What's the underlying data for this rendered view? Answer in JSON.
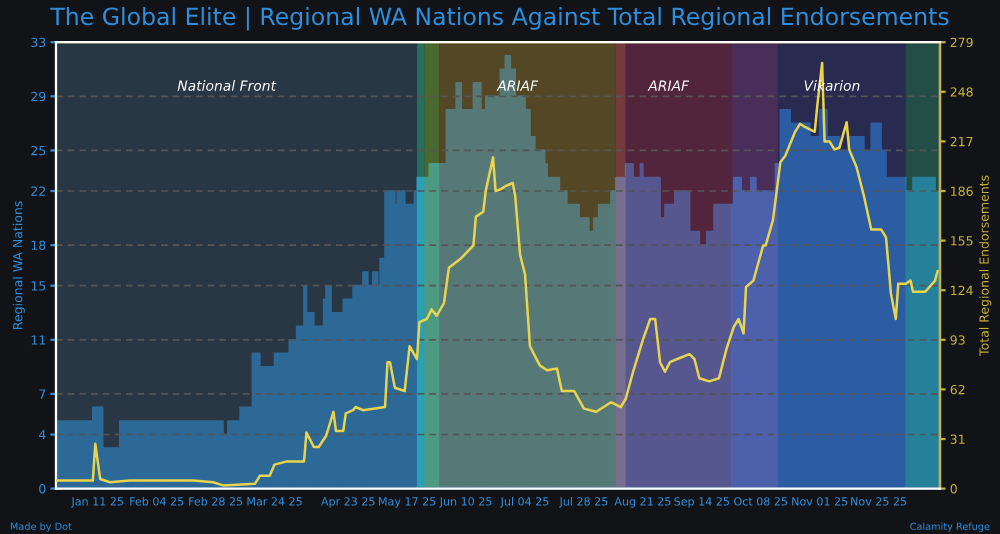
{
  "chart_data": {
    "type": "line",
    "title": "The Global Elite | Regional WA Nations Against Total Regional Endorsements",
    "ylabel": "Regional WA Nations",
    "y2label": "Total Regional Endorsements",
    "annotations": [
      "Made by Dot",
      "Calamity Refuge"
    ],
    "xlim": [
      "2024-12-25",
      "2025-12-20"
    ],
    "xticks": [
      {
        "value": "2025-01-11",
        "label": "Jan 11 25"
      },
      {
        "value": "2025-02-04",
        "label": "Feb 04 25"
      },
      {
        "value": "2025-02-28",
        "label": "Feb 28 25"
      },
      {
        "value": "2025-03-24",
        "label": "Mar 24 25"
      },
      {
        "value": "2025-04-23",
        "label": "Apr 23 25"
      },
      {
        "value": "2025-05-17",
        "label": "May 17 25"
      },
      {
        "value": "2025-06-10",
        "label": "Jun 10 25"
      },
      {
        "value": "2025-07-04",
        "label": "Jul 04 25"
      },
      {
        "value": "2025-07-28",
        "label": "Jul 28 25"
      },
      {
        "value": "2025-08-21",
        "label": "Aug 21 25"
      },
      {
        "value": "2025-09-14",
        "label": "Sep 14 25"
      },
      {
        "value": "2025-10-08",
        "label": "Oct 08 25"
      },
      {
        "value": "2025-11-01",
        "label": "Nov 01 25"
      },
      {
        "value": "2025-11-25",
        "label": "Nov 25 25"
      }
    ],
    "ylim": [
      0,
      33
    ],
    "yticks": [
      0,
      4,
      7,
      11,
      15,
      18,
      22,
      25,
      29,
      33
    ],
    "y2lim": [
      0,
      279
    ],
    "y2ticks": [
      0,
      31,
      62,
      93,
      124,
      155,
      186,
      217,
      248,
      279
    ],
    "grid": "y",
    "series": [
      {
        "type": "area",
        "color": "#2299ee",
        "x": [
          "2024-12-25",
          "2025-01-09",
          "2025-01-09",
          "2025-01-13",
          "2025-01-13",
          "2025-01-20",
          "2025-01-20",
          "2025-03-03",
          "2025-03-03",
          "2025-03-05",
          "2025-03-05",
          "2025-03-10",
          "2025-03-10",
          "2025-03-15",
          "2025-03-15",
          "2025-03-18",
          "2025-03-18",
          "2025-03-24",
          "2025-03-24",
          "2025-03-30",
          "2025-03-30",
          "2025-04-02",
          "2025-04-02",
          "2025-04-05",
          "2025-04-05",
          "2025-04-06",
          "2025-04-06",
          "2025-04-09",
          "2025-04-09",
          "2025-04-13",
          "2025-04-13",
          "2025-04-14",
          "2025-04-14",
          "2025-04-16",
          "2025-04-16",
          "2025-04-21",
          "2025-04-21",
          "2025-04-25",
          "2025-04-25",
          "2025-04-29",
          "2025-04-29",
          "2025-05-01",
          "2025-05-01",
          "2025-05-03",
          "2025-05-03",
          "2025-05-05",
          "2025-05-05",
          "2025-05-06",
          "2025-05-06",
          "2025-05-08",
          "2025-05-08",
          "2025-05-12",
          "2025-05-12",
          "2025-05-13",
          "2025-05-13",
          "2025-05-16",
          "2025-05-16",
          "2025-05-20",
          "2025-05-20",
          "2025-05-21",
          "2025-05-21",
          "2025-05-26",
          "2025-05-26",
          "2025-06-02",
          "2025-06-02",
          "2025-06-06",
          "2025-06-06",
          "2025-06-08",
          "2025-06-08",
          "2025-06-13",
          "2025-06-13",
          "2025-06-16",
          "2025-06-16",
          "2025-06-18",
          "2025-06-18",
          "2025-06-24",
          "2025-06-24",
          "2025-06-26",
          "2025-06-26",
          "2025-06-28",
          "2025-06-28",
          "2025-06-30",
          "2025-06-30",
          "2025-07-04",
          "2025-07-04",
          "2025-07-06",
          "2025-07-06",
          "2025-07-08",
          "2025-07-08",
          "2025-07-12",
          "2025-07-12",
          "2025-07-13",
          "2025-07-13",
          "2025-07-18",
          "2025-07-18",
          "2025-07-21",
          "2025-07-21",
          "2025-07-26",
          "2025-07-26",
          "2025-07-30",
          "2025-07-30",
          "2025-08-01",
          "2025-08-01",
          "2025-08-03",
          "2025-08-03",
          "2025-08-08",
          "2025-08-08",
          "2025-08-10",
          "2025-08-10",
          "2025-08-14",
          "2025-08-14",
          "2025-08-17",
          "2025-08-17",
          "2025-08-20",
          "2025-08-20",
          "2025-08-21",
          "2025-08-21",
          "2025-08-28",
          "2025-08-28",
          "2025-08-30",
          "2025-08-30",
          "2025-09-03",
          "2025-09-03",
          "2025-09-09",
          "2025-09-09",
          "2025-09-13",
          "2025-09-13",
          "2025-09-16",
          "2025-09-16",
          "2025-09-19",
          "2025-09-19",
          "2025-09-27",
          "2025-09-27",
          "2025-09-30",
          "2025-09-30",
          "2025-10-04",
          "2025-10-04",
          "2025-10-06",
          "2025-10-06",
          "2025-10-14",
          "2025-10-14",
          "2025-10-16",
          "2025-10-16",
          "2025-10-20",
          "2025-10-20",
          "2025-10-28",
          "2025-10-28",
          "2025-11-01",
          "2025-11-01",
          "2025-11-04",
          "2025-11-04",
          "2025-11-09",
          "2025-11-09",
          "2025-11-13",
          "2025-11-13",
          "2025-11-19",
          "2025-11-19",
          "2025-11-22",
          "2025-11-22",
          "2025-11-26",
          "2025-11-26",
          "2025-11-28",
          "2025-11-28",
          "2025-12-06",
          "2025-12-06",
          "2025-12-09",
          "2025-12-09",
          "2025-12-18",
          "2025-12-18",
          "2025-12-20"
        ],
        "values": [
          5,
          5,
          6,
          6,
          3,
          3,
          5,
          5,
          4,
          4,
          5,
          5,
          6,
          6,
          10,
          10,
          9,
          9,
          10,
          10,
          11,
          11,
          12,
          12,
          15,
          15,
          13,
          13,
          12,
          12,
          14,
          14,
          15,
          15,
          13,
          13,
          14,
          14,
          15,
          15,
          16,
          16,
          15,
          15,
          16,
          16,
          15,
          15,
          17,
          17,
          22,
          22,
          21,
          21,
          22,
          22,
          21,
          21,
          22,
          22,
          23,
          23,
          24,
          24,
          28,
          28,
          30,
          30,
          28,
          28,
          30,
          30,
          28,
          28,
          29,
          29,
          31,
          31,
          32,
          32,
          31,
          31,
          29,
          29,
          28,
          28,
          26,
          26,
          25,
          25,
          24,
          24,
          23,
          23,
          22,
          22,
          21,
          21,
          20,
          20,
          19,
          19,
          20,
          20,
          21,
          21,
          22,
          22,
          23,
          23,
          24,
          24,
          23,
          23,
          24,
          24,
          23,
          23,
          20,
          20,
          21,
          21,
          22,
          22,
          19,
          19,
          18,
          18,
          19,
          19,
          21,
          21,
          23,
          23,
          22,
          22,
          23,
          23,
          22,
          22,
          24,
          24,
          28,
          28,
          27,
          27,
          26,
          26,
          28,
          28,
          26,
          26,
          25,
          25,
          26,
          26,
          25,
          25,
          27,
          27,
          25,
          25,
          23,
          23,
          22,
          22,
          23,
          23,
          22,
          22
        ]
      },
      {
        "axis": "y2",
        "color": "#e8d44d",
        "x": [
          "2024-12-25",
          "2025-01-09",
          "2025-01-10",
          "2025-01-12",
          "2025-01-16",
          "2025-01-24",
          "2025-02-19",
          "2025-02-27",
          "2025-03-03",
          "2025-03-16",
          "2025-03-18",
          "2025-03-22",
          "2025-03-24",
          "2025-03-29",
          "2025-04-05",
          "2025-04-06",
          "2025-04-09",
          "2025-04-11",
          "2025-04-14",
          "2025-04-17",
          "2025-04-18",
          "2025-04-21",
          "2025-04-22",
          "2025-04-25",
          "2025-04-26",
          "2025-04-29",
          "2025-05-08",
          "2025-05-09",
          "2025-05-10",
          "2025-05-12",
          "2025-05-16",
          "2025-05-18",
          "2025-05-21",
          "2025-05-22",
          "2025-05-25",
          "2025-05-27",
          "2025-05-29",
          "2025-06-01",
          "2025-06-03",
          "2025-06-08",
          "2025-06-13",
          "2025-06-14",
          "2025-06-17",
          "2025-06-18",
          "2025-06-21",
          "2025-06-22",
          "2025-06-24",
          "2025-06-26",
          "2025-06-29",
          "2025-06-30",
          "2025-07-02",
          "2025-07-04",
          "2025-07-06",
          "2025-07-10",
          "2025-07-13",
          "2025-07-17",
          "2025-07-19",
          "2025-07-24",
          "2025-07-28",
          "2025-08-02",
          "2025-08-08",
          "2025-08-12",
          "2025-08-14",
          "2025-08-17",
          "2025-08-21",
          "2025-08-24",
          "2025-08-26",
          "2025-08-28",
          "2025-08-30",
          "2025-09-01",
          "2025-09-04",
          "2025-09-09",
          "2025-09-11",
          "2025-09-13",
          "2025-09-17",
          "2025-09-21",
          "2025-09-24",
          "2025-09-27",
          "2025-09-29",
          "2025-10-01",
          "2025-10-02",
          "2025-10-05",
          "2025-10-09",
          "2025-10-10",
          "2025-10-13",
          "2025-10-16",
          "2025-10-18",
          "2025-10-22",
          "2025-10-24",
          "2025-10-26",
          "2025-10-30",
          "2025-10-31",
          "2025-11-02",
          "2025-11-03",
          "2025-11-05",
          "2025-11-07",
          "2025-11-09",
          "2025-11-12",
          "2025-11-13",
          "2025-11-16",
          "2025-11-19",
          "2025-11-22",
          "2025-11-26",
          "2025-11-28",
          "2025-11-29",
          "2025-11-30",
          "2025-12-02",
          "2025-12-03",
          "2025-12-06",
          "2025-12-08",
          "2025-12-09",
          "2025-12-14",
          "2025-12-18",
          "2025-12-19"
        ],
        "values": [
          5,
          5,
          28,
          6,
          4,
          5,
          5,
          4,
          2,
          3,
          8,
          8,
          15,
          17,
          17,
          35,
          26,
          26,
          33,
          48,
          36,
          36,
          47,
          49,
          51,
          49,
          51,
          79,
          79,
          63,
          61,
          89,
          81,
          104,
          106,
          112,
          108,
          116,
          138,
          144,
          152,
          170,
          173,
          186,
          207,
          186,
          187,
          189,
          191,
          183,
          146,
          134,
          89,
          77,
          74,
          75,
          61,
          61,
          50,
          48,
          54,
          51,
          56,
          73,
          93,
          106,
          106,
          79,
          73,
          79,
          81,
          84,
          81,
          69,
          67,
          69,
          87,
          101,
          106,
          97,
          126,
          130,
          152,
          152,
          168,
          204,
          208,
          223,
          228,
          226,
          223,
          239,
          266,
          217,
          217,
          212,
          213,
          229,
          212,
          201,
          183,
          162,
          162,
          157,
          140,
          122,
          106,
          128,
          128,
          130,
          123,
          123,
          130,
          136
        ]
      }
    ],
    "bands": [
      {
        "axis": "x",
        "from": "2024-12-25",
        "to": "2025-05-21",
        "label": "National Front",
        "color": "#34495e"
      },
      {
        "axis": "x",
        "from": "2025-05-21",
        "to": "2025-05-24",
        "color": "#2aa88a"
      },
      {
        "axis": "x",
        "from": "2025-05-24",
        "to": "2025-05-30",
        "color": "#6a9a3a"
      },
      {
        "axis": "x",
        "from": "2025-05-30",
        "to": "2025-08-10",
        "label": "ARIAF",
        "color": "#7a6428"
      },
      {
        "axis": "x",
        "from": "2025-08-10",
        "to": "2025-08-14",
        "color": "#b05050"
      },
      {
        "axis": "x",
        "from": "2025-08-14",
        "to": "2025-09-26",
        "label": "ARIAF",
        "color": "#7a2c50"
      },
      {
        "axis": "x",
        "from": "2025-09-26",
        "to": "2025-10-15",
        "color": "#6a3a80"
      },
      {
        "axis": "x",
        "from": "2025-10-15",
        "to": "2025-12-06",
        "label": "Vikarion",
        "color": "#33336e"
      },
      {
        "axis": "x",
        "from": "2025-12-06",
        "to": "2025-12-20",
        "color": "#2a7060"
      }
    ]
  }
}
